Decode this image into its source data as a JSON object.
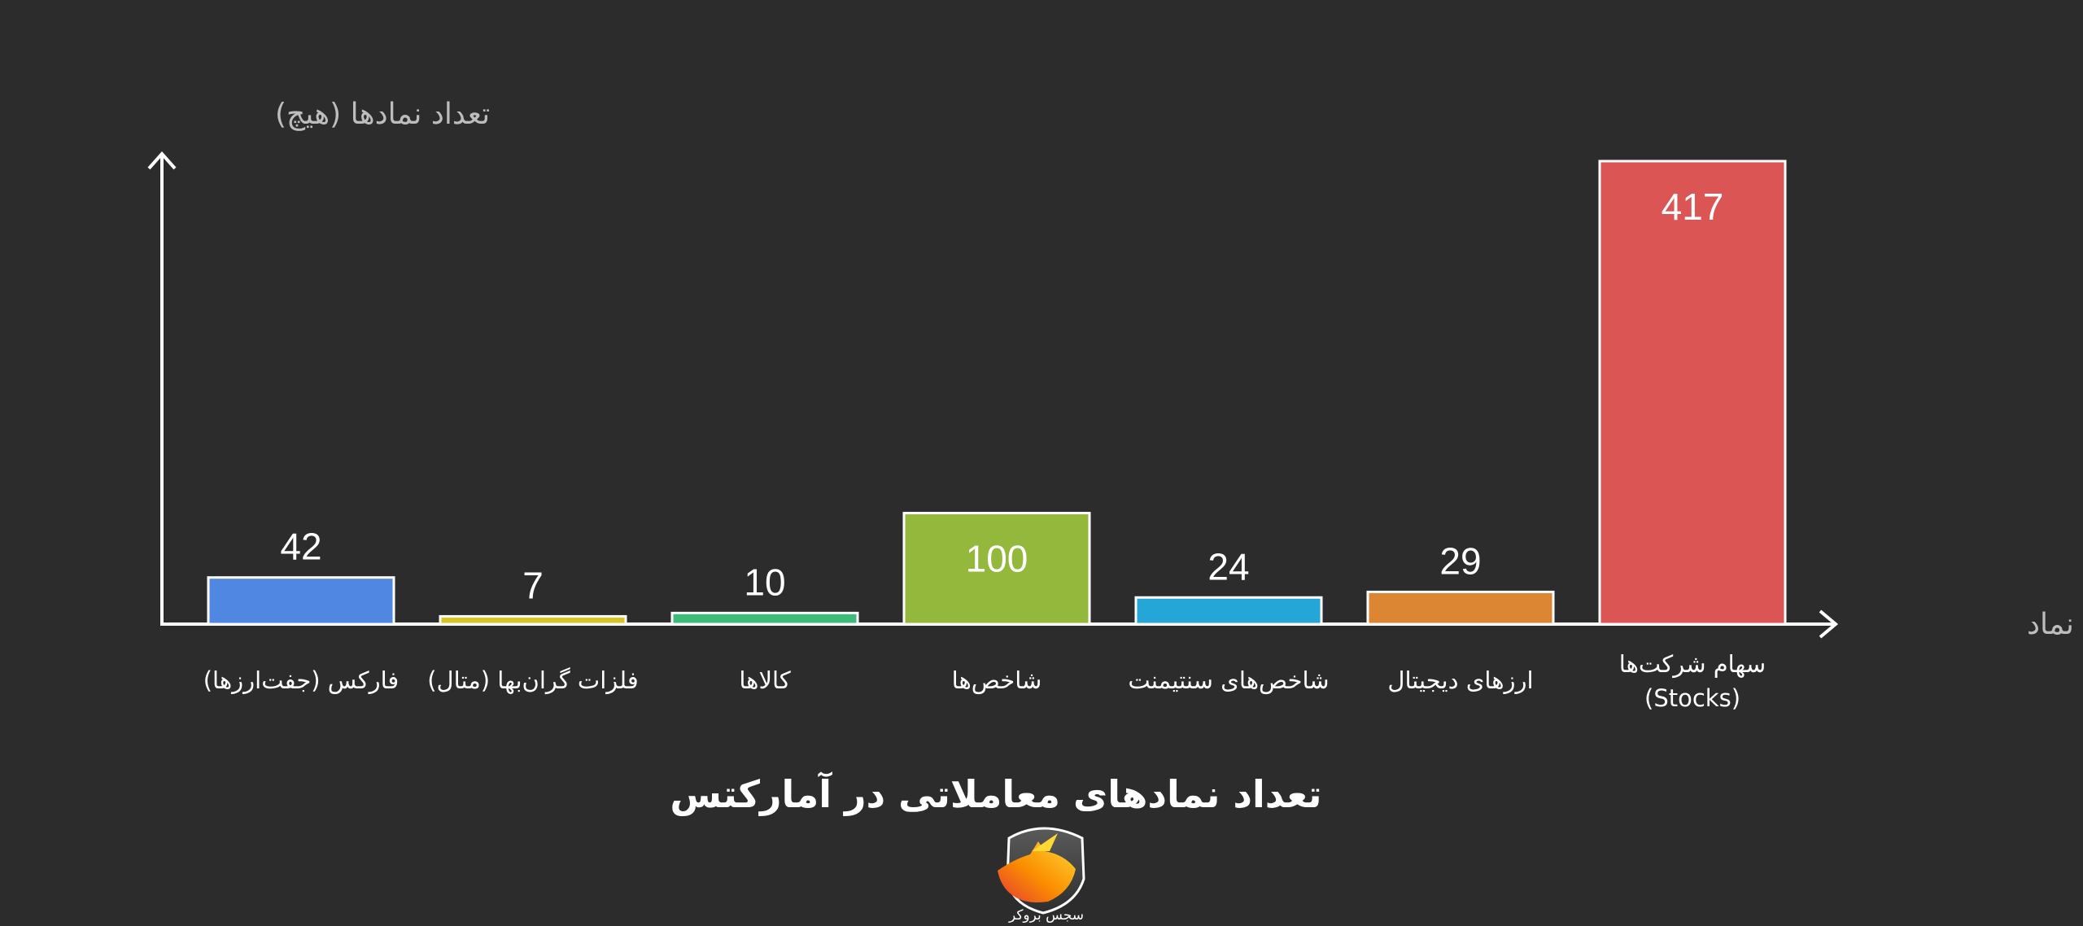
{
  "chart_data": {
    "type": "bar",
    "title": "تعداد نمادهای معاملاتی در آمارکتس",
    "ylabel": "تعداد نمادها (هیچ)",
    "xlabel": "دسته‌بندی نماد",
    "ylim": [
      0,
      417
    ],
    "grid": false,
    "categories": [
      [
        "فارکس (جفت‌ارزها)"
      ],
      [
        "فلزات گران‌بها (متال)"
      ],
      [
        "کالاها"
      ],
      [
        "شاخص‌ها"
      ],
      [
        "شاخص‌های سنتیمنت"
      ],
      [
        "ارزهای دیجیتال"
      ],
      [
        "سهام شرکت‌ها",
        "(Stocks)"
      ]
    ],
    "values": [
      42,
      7,
      10,
      100,
      24,
      29,
      417
    ],
    "colors": [
      "#4f87e3",
      "#d8c524",
      "#3dbb78",
      "#93b83c",
      "#24a7d7",
      "#dc8634",
      "#dc5555"
    ]
  },
  "logo": {
    "text": "سجس بروکر",
    "icon": "horse-shield-icon"
  }
}
